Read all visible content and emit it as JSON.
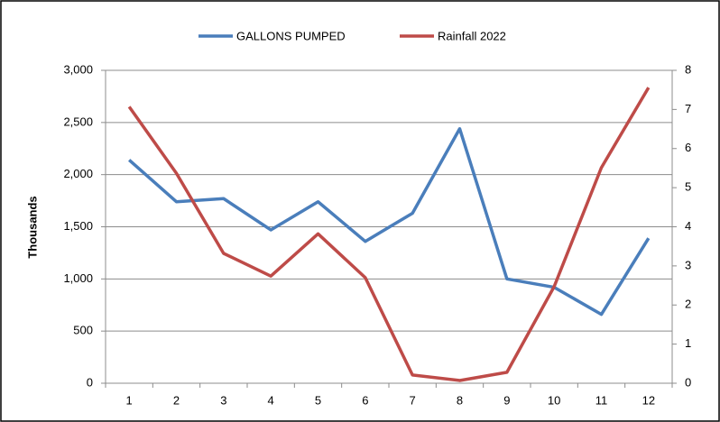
{
  "chart_data": {
    "type": "line",
    "ylabel": "Thousands",
    "categories": [
      "1",
      "2",
      "3",
      "4",
      "5",
      "6",
      "7",
      "8",
      "9",
      "10",
      "11",
      "12"
    ],
    "series": [
      {
        "name": "GALLONS PUMPED",
        "color": "#4a7ebb",
        "values": [
          2140,
          1740,
          1770,
          1470,
          1740,
          1360,
          1630,
          2440,
          1000,
          920,
          660,
          1390
        ]
      },
      {
        "name": "Rainfall 2022",
        "color": "#be4b48",
        "axis": "y2",
        "values": [
          7.07,
          5.37,
          3.32,
          2.74,
          3.82,
          2.7,
          0.21,
          0.07,
          0.28,
          2.47,
          5.51,
          7.56
        ]
      }
    ],
    "ylim": [
      0,
      3000
    ],
    "yticks": [
      0,
      500,
      {
        "value": 1000,
        "label": "1,000"
      },
      {
        "value": 1500,
        "label": "1,500"
      },
      {
        "value": 2000,
        "label": "2,000"
      },
      {
        "value": 2500,
        "label": "2,500"
      },
      {
        "value": 3000,
        "label": "3,000"
      }
    ],
    "y2lim": [
      0,
      8
    ],
    "y2ticks": [
      0,
      1,
      2,
      3,
      4,
      5,
      6,
      7,
      8
    ],
    "grid": true,
    "legend": "top"
  }
}
